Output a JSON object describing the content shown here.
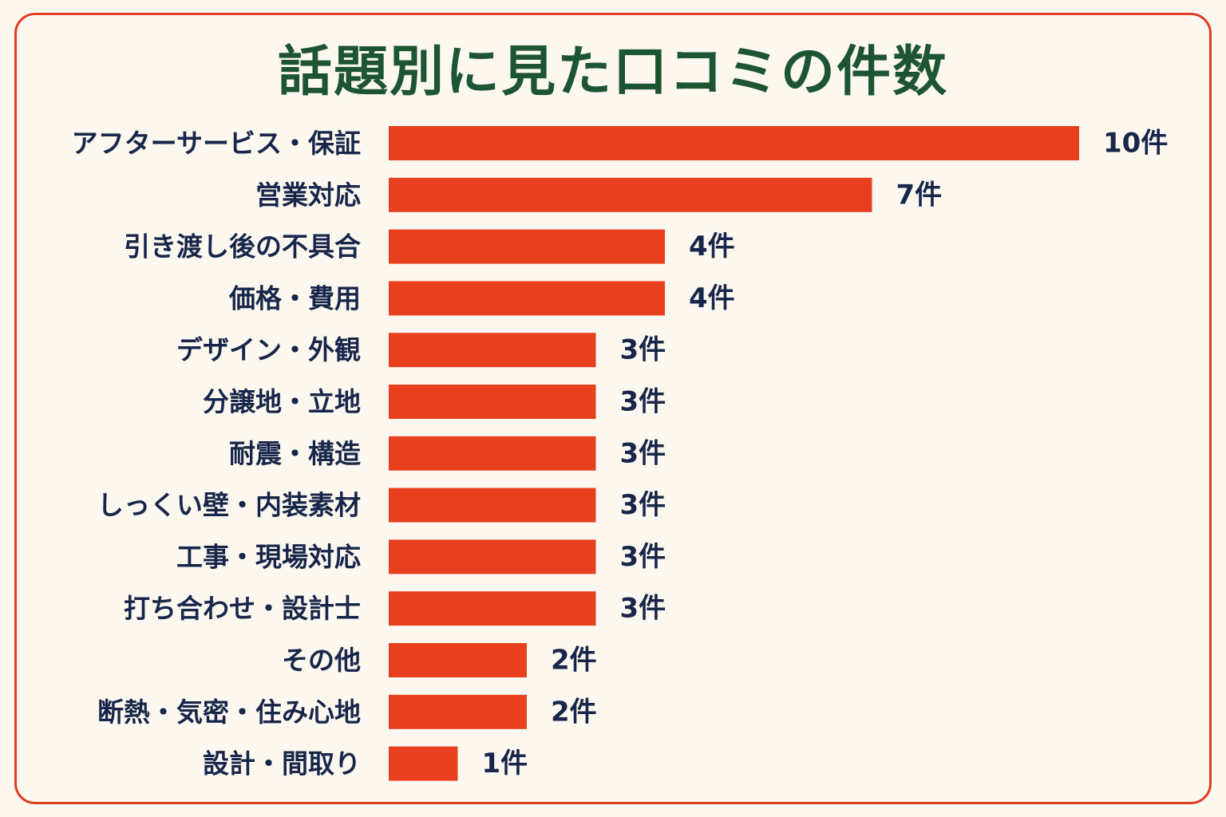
{
  "chart_data": {
    "type": "bar",
    "orientation": "horizontal",
    "title": "話題別に見た口コミの件数",
    "categories": [
      "アフターサービス・保証",
      "営業対応",
      "引き渡し後の不具合",
      "価格・費用",
      "デザイン・外観",
      "分譲地・立地",
      "耐震・構造",
      "しっくい壁・内装素材",
      "工事・現場対応",
      "打ち合わせ・設計士",
      "その他",
      "断熱・気密・住み心地",
      "設計・間取り"
    ],
    "values": [
      10,
      7,
      4,
      4,
      3,
      3,
      3,
      3,
      3,
      3,
      2,
      2,
      1
    ],
    "value_labels": [
      "10件",
      "7件",
      "4件",
      "4件",
      "3件",
      "3件",
      "3件",
      "3件",
      "3件",
      "3件",
      "2件",
      "2件",
      "1件"
    ],
    "xlim": [
      0,
      10
    ],
    "grid": false,
    "legend": "none",
    "colors": {
      "bar": "#e8401f",
      "title": "#1d5532",
      "text": "#17264a",
      "border": "#e03c22",
      "background": "#fdf8ef"
    }
  }
}
